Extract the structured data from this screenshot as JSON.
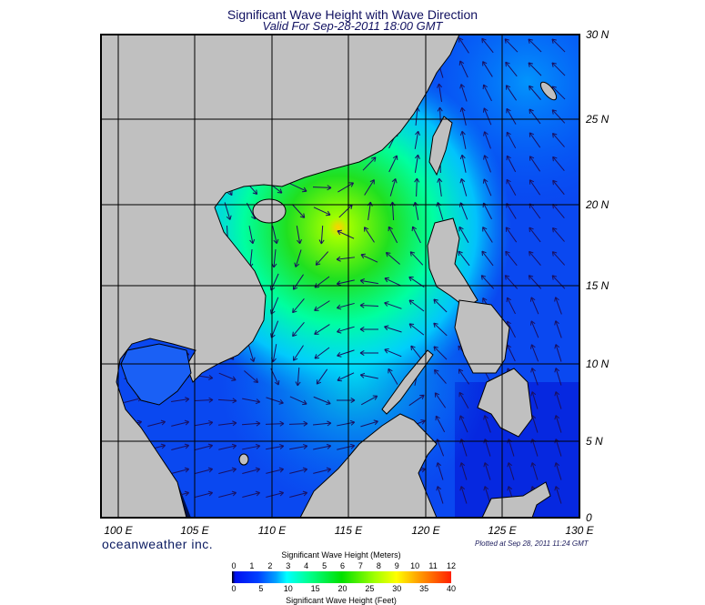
{
  "title": "Significant Wave Height with Wave Direction",
  "subtitle": "Valid For Sep-28-2011 18:00 GMT",
  "longitude_labels": [
    "100 E",
    "105 E",
    "110 E",
    "115 E",
    "120 E",
    "125 E",
    "130 E"
  ],
  "latitude_labels": [
    "30 N",
    "25 N",
    "20 N",
    "15 N",
    "10 N",
    "5 N",
    "0"
  ],
  "logo_text": "oceanweather inc.",
  "plotted_text": "Plotted at Sep 28, 2011 11:24 GMT",
  "colorbar": {
    "meters_title": "Significant Wave Height (Meters)",
    "feet_title": "Significant Wave Height (Feet)",
    "meters_ticks": [
      "0",
      "1",
      "2",
      "3",
      "4",
      "5",
      "6",
      "7",
      "8",
      "9",
      "10",
      "11",
      "12"
    ],
    "feet_ticks": [
      "0",
      "5",
      "10",
      "15",
      "20",
      "25",
      "30",
      "35",
      "40"
    ],
    "colors": [
      "#000000",
      "#0010f0",
      "#00ffff",
      "#00e000",
      "#ffff00",
      "#ff2000"
    ]
  },
  "map": {
    "region_lon": [
      100,
      130
    ],
    "region_lat": [
      0,
      30
    ],
    "land_color": "#c0c0c0",
    "arrow_color": "#1a1060",
    "max_wave_center_lonlat": [
      114,
      19
    ]
  }
}
